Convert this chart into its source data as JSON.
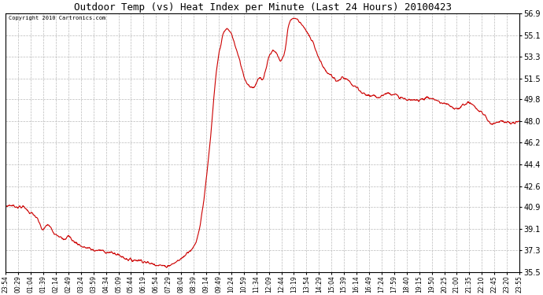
{
  "title": "Outdoor Temp (vs) Heat Index per Minute (Last 24 Hours) 20100423",
  "copyright": "Copyright 2010 Cartronics.com",
  "line_color": "#cc0000",
  "background_color": "#ffffff",
  "plot_bg_color": "#ffffff",
  "grid_color": "#bbbbbb",
  "ymin": 35.5,
  "ymax": 56.9,
  "yticks": [
    35.5,
    37.3,
    39.1,
    40.9,
    42.6,
    44.4,
    46.2,
    48.0,
    49.8,
    51.5,
    53.3,
    55.1,
    56.9
  ],
  "xtick_labels": [
    "23:54",
    "00:29",
    "01:04",
    "01:39",
    "02:14",
    "02:49",
    "03:24",
    "03:59",
    "04:34",
    "05:09",
    "05:44",
    "06:19",
    "06:54",
    "07:29",
    "08:04",
    "08:39",
    "09:14",
    "09:49",
    "10:24",
    "10:59",
    "11:34",
    "12:09",
    "12:44",
    "13:19",
    "13:54",
    "14:29",
    "15:04",
    "15:39",
    "16:14",
    "16:49",
    "17:24",
    "17:59",
    "18:40",
    "19:15",
    "19:50",
    "20:25",
    "21:00",
    "21:35",
    "22:10",
    "22:45",
    "23:20",
    "23:55"
  ],
  "keypoints_x": [
    0,
    20,
    35,
    55,
    65,
    80,
    95,
    105,
    115,
    125,
    135,
    150,
    165,
    175,
    185,
    200,
    215,
    230,
    250,
    265,
    280,
    295,
    310,
    325,
    340,
    355,
    375,
    395,
    410,
    430,
    450,
    460,
    475,
    485,
    495,
    505,
    510,
    515,
    520,
    525,
    530,
    535,
    540,
    545,
    550,
    555,
    560,
    565,
    570,
    575,
    580,
    585,
    590,
    600,
    610,
    615,
    620,
    625,
    630,
    635,
    640,
    645,
    650,
    660,
    670,
    680,
    690,
    700,
    710,
    720,
    730,
    740,
    750,
    760,
    770,
    775,
    780,
    790,
    800,
    810,
    820,
    830,
    840,
    850,
    860,
    870,
    880,
    890,
    900,
    910,
    920,
    930,
    940,
    950,
    960,
    970,
    980,
    990,
    1000,
    1020,
    1040,
    1060,
    1080,
    1100,
    1120,
    1140,
    1160,
    1180,
    1200,
    1220,
    1240,
    1260,
    1280,
    1300,
    1320,
    1340,
    1360,
    1380,
    1400,
    1420,
    1439
  ],
  "keypoints_y": [
    40.9,
    41.0,
    40.9,
    40.8,
    40.5,
    40.2,
    39.5,
    39.0,
    39.4,
    39.2,
    38.8,
    38.5,
    38.2,
    38.5,
    38.2,
    37.9,
    37.6,
    37.5,
    37.3,
    37.3,
    37.2,
    37.1,
    37.0,
    36.8,
    36.6,
    36.5,
    36.5,
    36.3,
    36.2,
    36.1,
    36.0,
    36.1,
    36.3,
    36.5,
    36.7,
    37.0,
    37.2,
    37.3,
    37.4,
    37.5,
    37.8,
    38.2,
    38.8,
    39.5,
    40.5,
    41.5,
    42.8,
    44.0,
    45.5,
    47.0,
    48.8,
    50.5,
    52.0,
    54.0,
    55.2,
    55.5,
    55.6,
    55.5,
    55.3,
    55.0,
    54.5,
    54.0,
    53.5,
    52.5,
    51.5,
    51.0,
    50.8,
    51.0,
    51.5,
    51.5,
    52.5,
    53.5,
    53.8,
    53.5,
    53.0,
    53.2,
    53.5,
    55.5,
    56.4,
    56.5,
    56.3,
    56.0,
    55.5,
    55.0,
    54.5,
    53.8,
    53.0,
    52.5,
    52.0,
    51.8,
    51.5,
    51.3,
    51.5,
    51.5,
    51.3,
    51.0,
    50.8,
    50.5,
    50.3,
    50.1,
    50.0,
    50.2,
    50.3,
    50.0,
    49.8,
    49.7,
    49.8,
    49.9,
    49.8,
    49.5,
    49.3,
    49.0,
    49.3,
    49.5,
    49.0,
    48.5,
    47.8,
    48.0,
    47.9,
    47.8,
    48.0
  ]
}
